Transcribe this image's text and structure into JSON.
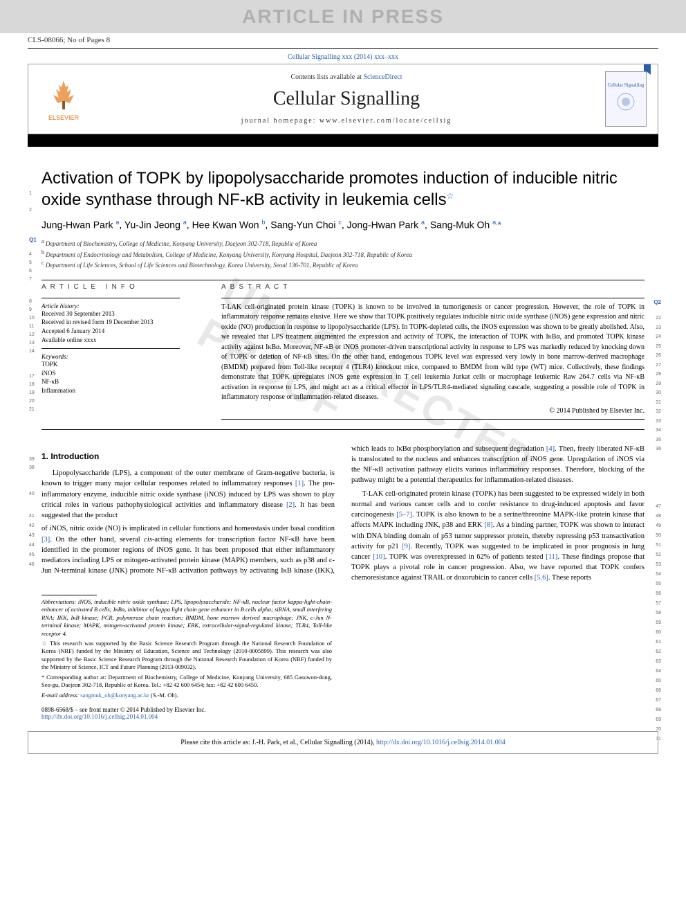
{
  "banner": {
    "text": "ARTICLE IN PRESS"
  },
  "header_id": "CLS-08066; No of Pages 8",
  "citation_header": "Cellular Signalling xxx (2014) xxx–xxx",
  "publisher": {
    "logo_text": "ELSEVIER",
    "contents_prefix": "Contents lists available at ",
    "contents_link": "ScienceDirect",
    "journal_name": "Cellular Signalling",
    "homepage_label": "journal homepage: www.elsevier.com/locate/cellsig",
    "cover_text": "Cellular Signalling"
  },
  "title": "Activation of TOPK by lipopolysaccharide promotes induction of inducible nitric oxide synthase through NF-κB activity in leukemia cells",
  "title_star": "☆",
  "authors_html": "Jung-Hwan Park <sup>a</sup>, Yu-Jin Jeong <sup>a</sup>, Hee Kwan Won <sup>b</sup>, Sang-Yun Choi <sup>c</sup>, Jong-Hwan Park <sup>a</sup>, Sang-Muk Oh <sup>a,</sup><span class='corr'>*</span>",
  "affiliations": [
    "a Department of Biochemistry, College of Medicine, Konyang University, Daejeon 302-718, Republic of Korea",
    "b Department of Endocrinology and Metabolism, College of Medicine, Konyang University, Konyang Hospital, Daejeon 302-718, Republic of Korea",
    "c Department of Life Sciences, School of Life Sciences and Biotechnology, Korea University, Seoul 136-701, Republic of Korea"
  ],
  "article_info": {
    "heading": "ARTICLE INFO",
    "history_label": "Article history:",
    "received": "Received 30 September 2013",
    "revised": "Received in revised form 19 December 2013",
    "accepted": "Accepted 6 January 2014",
    "online": "Available online xxxx",
    "keywords_label": "Keywords:",
    "keywords": [
      "TOPK",
      "iNOS",
      "NF-κB",
      "Inflammation"
    ]
  },
  "abstract": {
    "heading": "ABSTRACT",
    "text": "T-LAK cell-originated protein kinase (TOPK) is known to be involved in tumorigenesis or cancer progression. However, the role of TOPK in inflammatory response remains elusive. Here we show that TOPK positively regulates inducible nitric oxide synthase (iNOS) gene expression and nitric oxide (NO) production in response to lipopolysaccharide (LPS). In TOPK-depleted cells, the iNOS expression was shown to be greatly abolished. Also, we revealed that LPS treatment augmented the expression and activity of TOPK, the interaction of TOPK with IκBα, and promoted TOPK kinase activity against IκBα. Moreover, NF-κB or iNOS promoter-driven transcriptional activity in response to LPS was markedly reduced by knocking down of TOPK or deletion of NF-κB sites. On the other hand, endogenous TOPK level was expressed very lowly in bone marrow-derived macrophage (BMDM) prepared from Toll-like receptor 4 (TLR4) knockout mice, compared to BMDM from wild type (WT) mice. Collectively, these findings demonstrate that TOPK upregulates iNOS gene expression in T cell leukemia Jurkat cells or macrophage leukemic Raw 264.7 cells via NF-κB activation in response to LPS, and might act as a critical effector in LPS/TLR4-mediated signaling cascade, suggesting a possible role of TOPK in inflammatory response or inflammation-related diseases.",
    "copyright": "© 2014 Published by Elsevier Inc."
  },
  "body": {
    "section1_heading": "1. Introduction",
    "para1": "Lipopolysaccharide (LPS), a component of the outer membrane of Gram-negative bacteria, is known to trigger many major cellular responses related to inflammatory responses [1]. The pro-inflammatory enzyme, inducible nitric oxide synthase (iNOS) induced by LPS was shown to play critical roles in various pathophysiological activities and inflammatory disease [2]. It has been suggested that the product",
    "para2": "of iNOS, nitric oxide (NO) is implicated in cellular functions and homeostasis under basal condition [3]. On the other hand, several cis-acting elements for transcription factor NF-κB have been identified in the promoter regions of iNOS gene. It has been proposed that either inflammatory mediators including LPS or mitogen-activated protein kinase (MAPK) members, such as p38 and c-Jun N-terminal kinase (JNK) promote NF-κB activation pathways by activating IκB kinase (IKK), which leads to IκBα phosphorylation and subsequent degradation [4]. Then, freely liberated NF-κB is translocated to the nucleus and enhances transcription of iNOS gene. Upregulation of iNOS via the NF-κB activation pathway elicits various inflammatory responses. Therefore, blocking of the pathway might be a potential therapeutics for inflammation-related diseases.",
    "para3": "T-LAK cell-originated protein kinase (TOPK) has been suggested to be expressed widely in both normal and various cancer cells and to confer resistance to drug-induced apoptosis and favor carcinogenesis [5–7]. TOPK is also known to be a serine/threonine MAPK-like protein kinase that affects MAPK including JNK, p38 and ERK [8]. As a binding partner, TOPK was shown to interact with DNA binding domain of p53 tumor suppressor protein, thereby repressing p53 transactivation activity for p21 [9]. Recently, TOPK was suggested to be implicated in poor prognosis in lung cancer [10]. TOPK was overexpressed in 62% of patients tested [11]. These findings propose that TOPK plays a pivotal role in cancer progression. Also, we have reported that TOPK confers chemoresistance against TRAIL or doxorubicin to cancer cells [5,6]. These reports"
  },
  "footnotes": {
    "abbrev": "Abbreviations: iNOS, inducible nitric oxide synthase; LPS, lipopolysaccharide; NF-κB, nuclear factor kappa-light-chain-enhancer of activated B cells; IκBα, inhibitor of kappa light chain gene enhancer in B cells alpha; siRNA, small interfering RNA; IKK, IκB kinase; PCR, polymerase chain reaction; BMDM, bone marrow derived macrophage; JNK, c-Jun N-terminal kinase; MAPK, mitogen-activated protein kinase; ERK, extracellular-signal-regulated kinase; TLR4, Toll-like receptor 4.",
    "funding": "☆ This research was supported by the Basic Science Research Program through the National Research Foundation of Korea (NRF) funded by the Ministry of Education, Science and Technology (2010-0005899). This research was also supported by the Basic Science Research Program through the National Research Foundation of Korea (NRF) funded by the Ministry of Science, ICT and Future Planning (2013-009032).",
    "corresponding": "* Corresponding author at: Department of Biochemistry, College of Medicine, Konyang University, 685 Gasuwon-dong, Seo-gu, Daejeon 302-718, Republic of Korea. Tel.: +82 42 600 6454; fax: +82 42 600 6450.",
    "email_label": "E-mail address: ",
    "email": "sangmuk_oh@konyang.ac.kr",
    "email_suffix": " (S.-M. Oh)."
  },
  "front_matter": {
    "line1": "0898-6568/$ – see front matter © 2014 Published by Elsevier Inc.",
    "doi": "http://dx.doi.org/10.1016/j.cellsig.2014.01.004"
  },
  "cite_box": {
    "prefix": "Please cite this article as: J.-H. Park, et al., Cellular Signalling (2014), ",
    "link": "http://dx.doi.org/10.1016/j.cellsig.2014.01.004"
  },
  "q_marks": {
    "q1": "Q1",
    "q2": "Q2"
  },
  "line_numbers_left": [
    "1",
    "2",
    "",
    "4",
    "5",
    "6",
    "7",
    "8",
    "9",
    "10",
    "11",
    "12",
    "13",
    "14",
    "17",
    "18",
    "19",
    "20",
    "21",
    "39",
    "38",
    "",
    "40",
    "",
    "41",
    "42",
    "43",
    "44",
    "45",
    "46"
  ],
  "line_numbers_right": [
    "22",
    "23",
    "24",
    "25",
    "26",
    "27",
    "28",
    "29",
    "30",
    "31",
    "32",
    "33",
    "34",
    "35",
    "36",
    "",
    "47",
    "48",
    "49",
    "50",
    "51",
    "52",
    "53",
    "54",
    "55",
    "56",
    "57",
    "58",
    "59",
    "60",
    "61",
    "62",
    "63",
    "64",
    "65",
    "66",
    "67",
    "68",
    "69",
    "70",
    "71"
  ],
  "colors": {
    "link": "#2a5db0",
    "elsevier_orange": "#e67817",
    "banner_bg": "#d8d8d8",
    "banner_text": "#b0b0b0",
    "watermark": "#e8e8e8"
  }
}
